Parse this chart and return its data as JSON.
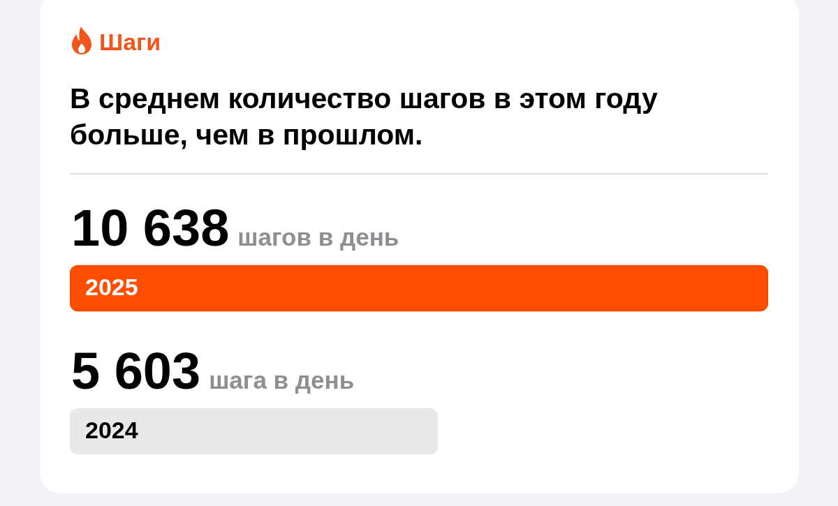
{
  "chart_data": {
    "type": "bar",
    "orientation": "horizontal",
    "title": "Шаги",
    "subtitle": "В среднем количество шагов в этом году больше, чем в прошлом.",
    "categories": [
      "2025",
      "2024"
    ],
    "values": [
      10638,
      5603
    ],
    "colors": [
      "#ff4d00",
      "#e9e9eb"
    ],
    "value_labels": [
      "10 638 шагов в день",
      "5 603 шага в день"
    ],
    "xlim": [
      0,
      10638
    ],
    "tick_labels": "y"
  }
}
